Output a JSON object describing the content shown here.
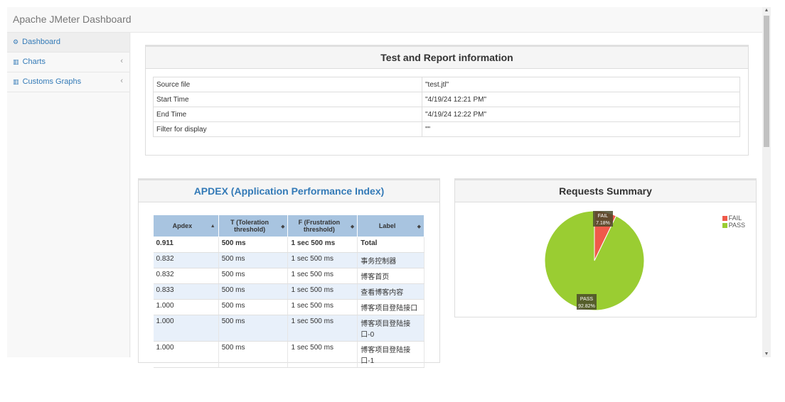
{
  "app": {
    "title": "Apache JMeter Dashboard"
  },
  "sidebar": {
    "items": [
      {
        "icon": "dashboard-icon",
        "label": "Dashboard",
        "active": true
      },
      {
        "icon": "bar-chart-icon",
        "label": "Charts",
        "chevron": "‹"
      },
      {
        "icon": "bar-chart-icon",
        "label": "Customs Graphs",
        "chevron": "‹"
      }
    ]
  },
  "report_info": {
    "title": "Test and Report information",
    "rows": [
      {
        "label": "Source file",
        "value": "\"test.jtl\""
      },
      {
        "label": "Start Time",
        "value": "\"4/19/24 12:21 PM\""
      },
      {
        "label": "End Time",
        "value": "\"4/19/24 12:22 PM\""
      },
      {
        "label": "Filter for display",
        "value": "\"\""
      }
    ]
  },
  "apdex": {
    "title": "APDEX (Application Performance Index)",
    "columns": [
      "Apdex",
      "T (Toleration threshold)",
      "F (Frustration threshold)",
      "Label"
    ],
    "sort_icons": [
      "▲",
      "◆",
      "◆",
      "◆"
    ],
    "rows": [
      [
        "0.911",
        "500 ms",
        "1 sec 500 ms",
        "Total"
      ],
      [
        "0.832",
        "500 ms",
        "1 sec 500 ms",
        "事务控制器"
      ],
      [
        "0.832",
        "500 ms",
        "1 sec 500 ms",
        "博客首页"
      ],
      [
        "0.833",
        "500 ms",
        "1 sec 500 ms",
        "查看博客内容"
      ],
      [
        "1.000",
        "500 ms",
        "1 sec 500 ms",
        "博客项目登陆接口"
      ],
      [
        "1.000",
        "500 ms",
        "1 sec 500 ms",
        "博客项目登陆接口-0"
      ],
      [
        "1.000",
        "500 ms",
        "1 sec 500 ms",
        "博客项目登陆接口-1"
      ]
    ]
  },
  "requests_summary": {
    "title": "Requests Summary",
    "colors": {
      "FAIL": "#ef5a4a",
      "PASS": "#9acd32"
    }
  },
  "chart_data": {
    "type": "pie",
    "categories": [
      "FAIL",
      "PASS"
    ],
    "values": [
      7.18,
      92.82
    ],
    "data_labels": [
      "FAIL\n7.18%",
      "PASS\n92.82%"
    ],
    "legend": "top-right",
    "title": "Requests Summary"
  }
}
